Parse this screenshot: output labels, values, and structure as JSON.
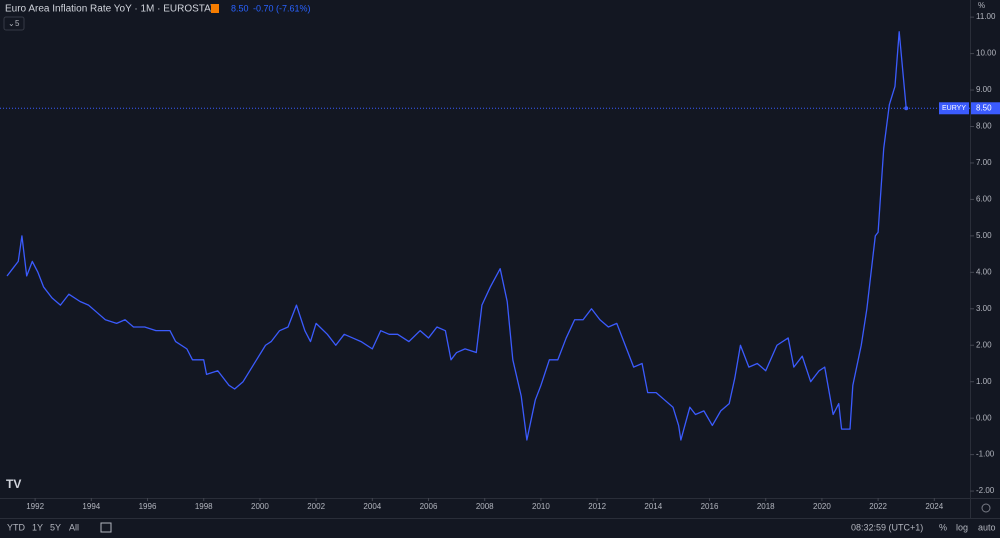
{
  "chart_data": {
    "type": "line",
    "title": "Euro Area Inflation Rate YoY · 1M · EUROSTAT",
    "last": {
      "name": "EURYY",
      "value": 8.5,
      "label": "8.50",
      "change": "-0.70 (-7.61%)"
    },
    "collapsed_count": "5",
    "y_unit": "%",
    "xlim": [
      1990.75,
      2025.27
    ],
    "ylim": [
      -2.19,
      11.47
    ],
    "xticks": [
      1992,
      1994,
      1996,
      1998,
      2000,
      2002,
      2004,
      2006,
      2008,
      2010,
      2012,
      2014,
      2016,
      2018,
      2020,
      2022,
      2024
    ],
    "yticks": [
      {
        "value": -2,
        "label": "-2.00"
      },
      {
        "value": -1,
        "label": "-1.00"
      },
      {
        "value": 0,
        "label": "0.00"
      },
      {
        "value": 1,
        "label": "1.00"
      },
      {
        "value": 2,
        "label": "2.00"
      },
      {
        "value": 3,
        "label": "3.00"
      },
      {
        "value": 4,
        "label": "4.00"
      },
      {
        "value": 5,
        "label": "5.00"
      },
      {
        "value": 6,
        "label": "6.00"
      },
      {
        "value": 7,
        "label": "7.00"
      },
      {
        "value": 8,
        "label": "8.00"
      },
      {
        "value": 9,
        "label": "9.00"
      },
      {
        "value": 10,
        "label": "10.00"
      },
      {
        "value": 11,
        "label": "11.00"
      }
    ],
    "grid": false,
    "x": [
      1991.0,
      1991.2,
      1991.4,
      1991.53,
      1991.7,
      1991.9,
      1992.1,
      1992.3,
      1992.6,
      1992.9,
      1993.2,
      1993.6,
      1993.9,
      1994.2,
      1994.5,
      1994.9,
      1995.2,
      1995.5,
      1995.9,
      1996.3,
      1996.8,
      1997.0,
      1997.4,
      1997.6,
      1998.0,
      1998.1,
      1998.5,
      1998.9,
      1999.1,
      1999.4,
      1999.8,
      2000.2,
      2000.4,
      2000.7,
      2001.0,
      2001.3,
      2001.6,
      2001.8,
      2002.0,
      2002.4,
      2002.7,
      2003.0,
      2003.3,
      2003.6,
      2004.0,
      2004.3,
      2004.6,
      2004.9,
      2005.3,
      2005.7,
      2006.0,
      2006.3,
      2006.6,
      2006.8,
      2007.0,
      2007.3,
      2007.7,
      2007.9,
      2008.2,
      2008.55,
      2008.8,
      2009.0,
      2009.3,
      2009.5,
      2009.8,
      2010.0,
      2010.3,
      2010.6,
      2010.9,
      2011.2,
      2011.5,
      2011.8,
      2012.1,
      2012.4,
      2012.7,
      2013.0,
      2013.3,
      2013.6,
      2013.8,
      2014.1,
      2014.4,
      2014.7,
      2014.9,
      2014.98,
      2015.3,
      2015.5,
      2015.8,
      2016.1,
      2016.4,
      2016.7,
      2016.9,
      2017.1,
      2017.4,
      2017.7,
      2018.0,
      2018.4,
      2018.8,
      2019.0,
      2019.3,
      2019.6,
      2019.9,
      2020.1,
      2020.4,
      2020.6,
      2020.7,
      2021.0,
      2021.1,
      2021.4,
      2021.6,
      2021.9,
      2022.0,
      2022.2,
      2022.4,
      2022.6,
      2022.75,
      2023.0
    ],
    "series": [
      {
        "name": "EURYY",
        "color": "#3b5bfd",
        "values": [
          3.9,
          4.1,
          4.3,
          5.0,
          3.9,
          4.3,
          4.0,
          3.6,
          3.3,
          3.1,
          3.4,
          3.2,
          3.1,
          2.9,
          2.7,
          2.6,
          2.7,
          2.5,
          2.5,
          2.4,
          2.4,
          2.1,
          1.9,
          1.6,
          1.6,
          1.2,
          1.3,
          0.9,
          0.8,
          1.0,
          1.5,
          2.0,
          2.1,
          2.4,
          2.5,
          3.1,
          2.4,
          2.1,
          2.6,
          2.3,
          2.0,
          2.3,
          2.2,
          2.1,
          1.9,
          2.4,
          2.3,
          2.3,
          2.1,
          2.4,
          2.2,
          2.5,
          2.4,
          1.6,
          1.8,
          1.9,
          1.8,
          3.1,
          3.6,
          4.1,
          3.2,
          1.6,
          0.6,
          -0.6,
          0.5,
          0.9,
          1.6,
          1.6,
          2.2,
          2.7,
          2.7,
          3.0,
          2.7,
          2.5,
          2.6,
          2.0,
          1.4,
          1.5,
          0.7,
          0.7,
          0.5,
          0.3,
          -0.2,
          -0.6,
          0.3,
          0.1,
          0.2,
          -0.2,
          0.2,
          0.4,
          1.1,
          2.0,
          1.4,
          1.5,
          1.3,
          2.0,
          2.2,
          1.4,
          1.7,
          1.0,
          1.3,
          1.4,
          0.1,
          0.4,
          -0.3,
          -0.3,
          0.9,
          2.0,
          3.0,
          5.0,
          5.1,
          7.4,
          8.6,
          9.1,
          10.6,
          8.5
        ]
      }
    ]
  },
  "toolbar": {
    "ranges": [
      "YTD",
      "1Y",
      "5Y",
      "All"
    ],
    "clock": "08:32:59 (UTC+1)",
    "percent": "%",
    "log": "log",
    "auto": "auto"
  }
}
